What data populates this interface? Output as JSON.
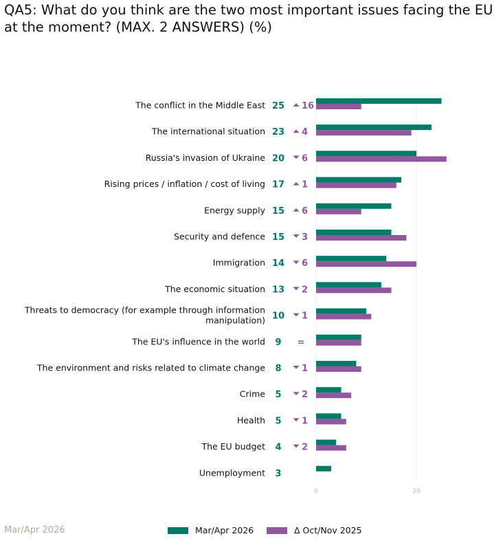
{
  "title": "QA5: What do you think are the two most important issues facing the EU at the moment? (MAX. 2 ANSWERS) (%)",
  "footer": "Mar/Apr 2026",
  "colors": {
    "current": "#007b68",
    "previous": "#92589f",
    "up": "#92589f",
    "down": "#92589f"
  },
  "chart_data": {
    "type": "bar",
    "orientation": "horizontal",
    "categories": [
      "The conflict in the Middle East",
      "The international situation",
      "Russia's invasion of Ukraine",
      "Rising prices / inflation / cost of living",
      "Energy supply",
      "Security and defence",
      "Immigration",
      "The economic situation",
      "Threats to democracy (for example through information manipulation)",
      "The EU's influence in the world",
      "The environment and risks related to climate change",
      "Crime",
      "Health",
      "The EU budget",
      "Unemployment"
    ],
    "series": [
      {
        "name": "Mar/Apr 2026",
        "values": [
          25,
          23,
          20,
          17,
          15,
          15,
          14,
          13,
          10,
          9,
          8,
          5,
          5,
          4,
          3
        ]
      },
      {
        "name": "Δ Oct/Nov 2025",
        "values": [
          9,
          19,
          26,
          16,
          9,
          18,
          20,
          15,
          11,
          9,
          9,
          7,
          6,
          6,
          null
        ]
      }
    ],
    "value_labels": [
      "25",
      "23",
      "20",
      "17",
      "15",
      "15",
      "14",
      "13",
      "10",
      "9",
      "8",
      "5",
      "5",
      "4",
      "3"
    ],
    "delta_labels": [
      "16",
      "4",
      "6",
      "1",
      "6",
      "3",
      "6",
      "2",
      "1",
      "=",
      "1",
      "2",
      "1",
      "2",
      ""
    ],
    "delta_direction": [
      "up",
      "up",
      "down",
      "up",
      "up",
      "down",
      "down",
      "down",
      "down",
      "same",
      "down",
      "down",
      "down",
      "down",
      "none"
    ],
    "xlim": [
      0,
      30
    ],
    "xticks": [
      "0",
      "20"
    ],
    "legend_position": "bottom",
    "legend": [
      "Mar/Apr 2026",
      "Δ Oct/Nov 2025"
    ]
  }
}
